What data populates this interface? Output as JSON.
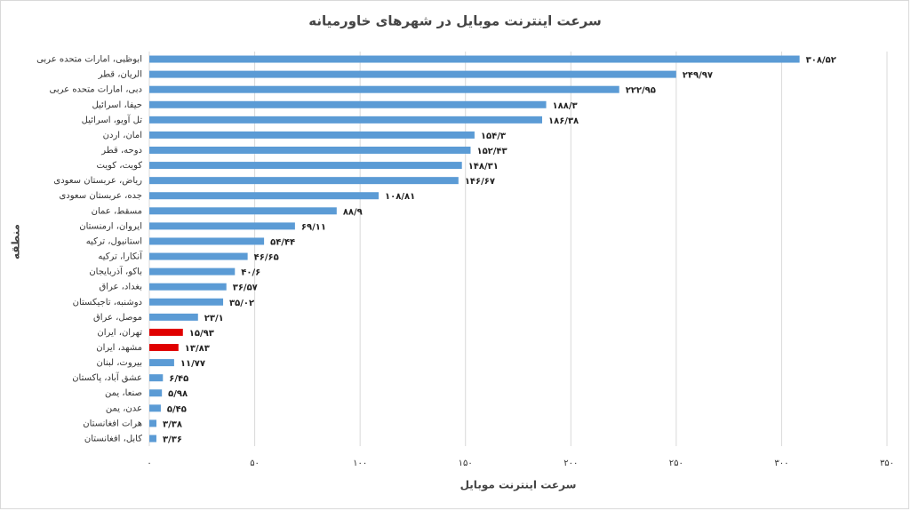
{
  "chart_data": {
    "type": "hbar",
    "title": "سرعت اینترنت موبایل در شهرهای خاورمیانه",
    "x_label": "سرعت اینترنت موبایل",
    "y_label": "منطقه",
    "categories": [
      "ابوظبی، امارات متحده عربی",
      "الریان، قطر",
      "دبی، امارات متحده عربی",
      "حیفا، اسرائیل",
      "تل آویو، اسرائیل",
      "امان، اردن",
      "دوحه، قطر",
      "کویت، کویت",
      "ریاض، عربستان سعودی",
      "جده، عربستان سعودی",
      "مسقط، عمان",
      "ایروان، ارمنستان",
      "استانبول، ترکیه",
      "آنکارا، ترکیه",
      "باکو، آذربایجان",
      "بغداد، عراق",
      "دوشنبه، تاجیکستان",
      "موصل، عراق",
      "تهران، ایران",
      "مشهد، ایران",
      "بیروت، لبنان",
      "عشق آباد، پاکستان",
      "صنعا، یمن",
      "عدن، یمن",
      "هرات افغانستان",
      "کابل، افغانستان"
    ],
    "values": [
      308.52,
      249.97,
      222.95,
      188.3,
      186.38,
      154.3,
      152.43,
      148.31,
      146.67,
      108.81,
      88.9,
      69.11,
      54.44,
      46.65,
      40.6,
      36.57,
      35.02,
      23.1,
      15.93,
      13.83,
      11.77,
      6.45,
      5.98,
      5.45,
      3.38,
      3.36
    ],
    "value_labels": [
      "۳۰۸/۵۲",
      "۲۴۹/۹۷",
      "۲۲۲/۹۵",
      "۱۸۸/۳",
      "۱۸۶/۳۸",
      "۱۵۴/۳",
      "۱۵۲/۴۳",
      "۱۴۸/۳۱",
      "۱۴۶/۶۷",
      "۱۰۸/۸۱",
      "۸۸/۹",
      "۶۹/۱۱",
      "۵۴/۴۴",
      "۴۶/۶۵",
      "۴۰/۶",
      "۳۶/۵۷",
      "۳۵/۰۲",
      "۲۳/۱",
      "۱۵/۹۳",
      "۱۳/۸۳",
      "۱۱/۷۷",
      "۶/۴۵",
      "۵/۹۸",
      "۵/۴۵",
      "۳/۳۸",
      "۳/۳۶"
    ],
    "colors": [
      "#5b9bd5",
      "#5b9bd5",
      "#5b9bd5",
      "#5b9bd5",
      "#5b9bd5",
      "#5b9bd5",
      "#5b9bd5",
      "#5b9bd5",
      "#5b9bd5",
      "#5b9bd5",
      "#5b9bd5",
      "#5b9bd5",
      "#5b9bd5",
      "#5b9bd5",
      "#5b9bd5",
      "#5b9bd5",
      "#5b9bd5",
      "#5b9bd5",
      "#e00000",
      "#e00000",
      "#5b9bd5",
      "#5b9bd5",
      "#5b9bd5",
      "#5b9bd5",
      "#5b9bd5",
      "#5b9bd5"
    ],
    "xlim": [
      0,
      350
    ],
    "xticks": [
      {
        "value": 0,
        "label": "۰"
      },
      {
        "value": 50,
        "label": "۵۰"
      },
      {
        "value": 100,
        "label": "۱۰۰"
      },
      {
        "value": 150,
        "label": "۱۵۰"
      },
      {
        "value": 200,
        "label": "۲۰۰"
      },
      {
        "value": 250,
        "label": "۲۵۰"
      },
      {
        "value": 300,
        "label": "۳۰۰"
      },
      {
        "value": 350,
        "label": "۳۵۰"
      }
    ],
    "grid": true
  }
}
